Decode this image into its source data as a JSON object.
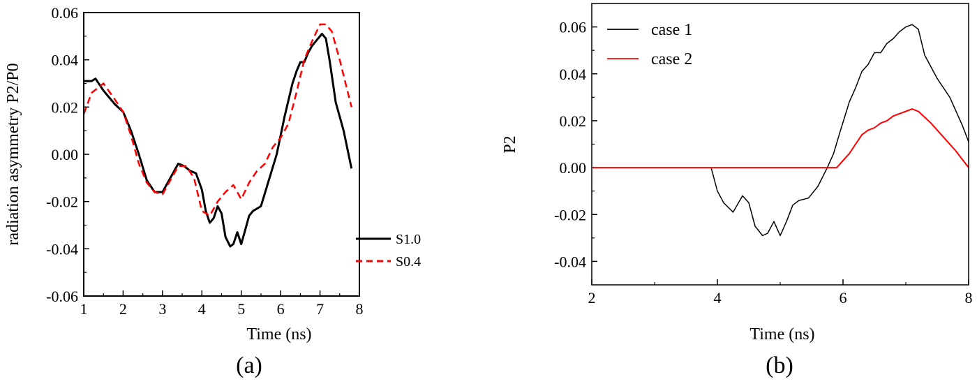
{
  "chart_data": [
    {
      "type": "line",
      "panel_label": "(a)",
      "xlabel": "Time (ns)",
      "ylabel": "radiation asymmetry P2/P0",
      "xlim": [
        1,
        8
      ],
      "ylim": [
        -0.06,
        0.06
      ],
      "xticks": [
        "1",
        "2",
        "3",
        "4",
        "5",
        "6",
        "7",
        "8"
      ],
      "yticks": [
        "-0.06",
        "-0.04",
        "-0.02",
        "0.00",
        "0.02",
        "0.04",
        "0.06"
      ],
      "legend_position": "bottom-right",
      "series": [
        {
          "name": "S1.0",
          "color": "#000000",
          "style": "solid",
          "x": [
            1.0,
            1.2,
            1.3,
            1.5,
            1.8,
            2.0,
            2.2,
            2.4,
            2.6,
            2.8,
            3.0,
            3.2,
            3.4,
            3.55,
            3.7,
            3.85,
            4.0,
            4.1,
            4.2,
            4.3,
            4.4,
            4.5,
            4.6,
            4.72,
            4.8,
            4.9,
            5.0,
            5.1,
            5.2,
            5.3,
            5.5,
            5.7,
            5.9,
            6.1,
            6.3,
            6.4,
            6.5,
            6.6,
            6.7,
            6.8,
            6.9,
            7.05,
            7.15,
            7.25,
            7.4,
            7.6,
            7.8
          ],
          "y": [
            0.031,
            0.031,
            0.032,
            0.027,
            0.021,
            0.018,
            0.01,
            0.0,
            -0.011,
            -0.016,
            -0.016,
            -0.01,
            -0.004,
            -0.005,
            -0.007,
            -0.008,
            -0.015,
            -0.024,
            -0.029,
            -0.027,
            -0.022,
            -0.025,
            -0.035,
            -0.039,
            -0.038,
            -0.033,
            -0.038,
            -0.032,
            -0.026,
            -0.024,
            -0.022,
            -0.011,
            0.0,
            0.016,
            0.03,
            0.035,
            0.039,
            0.039,
            0.043,
            0.046,
            0.048,
            0.051,
            0.049,
            0.039,
            0.022,
            0.01,
            -0.006
          ]
        },
        {
          "name": "S0.4",
          "color": "#ff0000",
          "style": "dashed",
          "x": [
            1.0,
            1.2,
            1.5,
            1.8,
            2.0,
            2.2,
            2.4,
            2.6,
            2.8,
            3.0,
            3.2,
            3.4,
            3.6,
            3.8,
            4.0,
            4.2,
            4.4,
            4.6,
            4.8,
            5.0,
            5.2,
            5.4,
            5.6,
            5.8,
            6.0,
            6.2,
            6.4,
            6.6,
            6.8,
            7.0,
            7.15,
            7.3,
            7.5,
            7.8
          ],
          "y": [
            0.017,
            0.026,
            0.03,
            0.023,
            0.018,
            0.008,
            -0.004,
            -0.012,
            -0.016,
            -0.017,
            -0.011,
            -0.005,
            -0.005,
            -0.01,
            -0.024,
            -0.026,
            -0.02,
            -0.016,
            -0.013,
            -0.019,
            -0.012,
            -0.007,
            -0.004,
            0.003,
            0.007,
            0.013,
            0.026,
            0.04,
            0.048,
            0.055,
            0.055,
            0.052,
            0.04,
            0.02
          ]
        }
      ]
    },
    {
      "type": "line",
      "panel_label": "(b)",
      "xlabel": "Time (ns)",
      "ylabel": "P2",
      "xlim": [
        2,
        8
      ],
      "ylim": [
        -0.05,
        0.07
      ],
      "xticks": [
        "2",
        "4",
        "6",
        "8"
      ],
      "yticks": [
        "-0.04",
        "-0.02",
        "0.00",
        "0.02",
        "0.04",
        "0.06"
      ],
      "legend_position": "top-left",
      "series": [
        {
          "name": "case 1",
          "color": "#000000",
          "style": "solid",
          "x": [
            3.9,
            4.0,
            4.1,
            4.25,
            4.4,
            4.5,
            4.6,
            4.72,
            4.8,
            4.9,
            5.0,
            5.1,
            5.2,
            5.3,
            5.45,
            5.6,
            5.75,
            5.85,
            5.95,
            6.1,
            6.2,
            6.3,
            6.4,
            6.5,
            6.6,
            6.7,
            6.8,
            6.9,
            7.0,
            7.1,
            7.2,
            7.3,
            7.5,
            7.7,
            7.9,
            8.0
          ],
          "y": [
            0.0,
            -0.01,
            -0.015,
            -0.019,
            -0.012,
            -0.015,
            -0.025,
            -0.029,
            -0.028,
            -0.023,
            -0.029,
            -0.023,
            -0.016,
            -0.014,
            -0.013,
            -0.008,
            0.0,
            0.006,
            0.015,
            0.028,
            0.034,
            0.041,
            0.044,
            0.049,
            0.049,
            0.053,
            0.055,
            0.058,
            0.06,
            0.061,
            0.059,
            0.048,
            0.038,
            0.03,
            0.018,
            0.011
          ]
        },
        {
          "name": "case 2",
          "color": "#ff0000",
          "style": "solid",
          "x": [
            2.0,
            5.9,
            6.1,
            6.2,
            6.3,
            6.4,
            6.5,
            6.6,
            6.7,
            6.8,
            6.9,
            7.0,
            7.1,
            7.2,
            7.4,
            7.6,
            7.8,
            8.0
          ],
          "y": [
            0.0,
            0.0,
            0.006,
            0.01,
            0.014,
            0.016,
            0.017,
            0.019,
            0.02,
            0.022,
            0.023,
            0.024,
            0.025,
            0.024,
            0.019,
            0.013,
            0.007,
            0.0
          ]
        }
      ]
    }
  ]
}
